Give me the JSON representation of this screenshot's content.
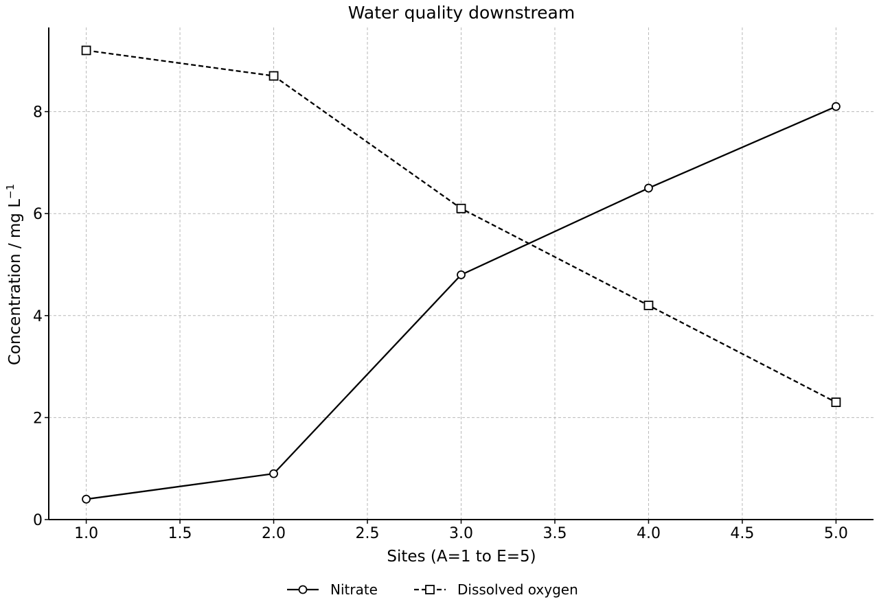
{
  "chart_data": {
    "type": "line",
    "title": "Water quality downstream",
    "xlabel": "Sites (A=1 to E=5)",
    "ylabel_main": "Concentration / mg L",
    "ylabel_sup": "−1",
    "xlim": [
      0.8,
      5.2
    ],
    "ylim": [
      0,
      9.65
    ],
    "xticks": [
      1.0,
      1.5,
      2.0,
      2.5,
      3.0,
      3.5,
      4.0,
      4.5,
      5.0
    ],
    "xtick_labels": [
      "1.0",
      "1.5",
      "2.0",
      "2.5",
      "3.0",
      "3.5",
      "4.0",
      "4.5",
      "5.0"
    ],
    "yticks": [
      0,
      2,
      4,
      6,
      8
    ],
    "ytick_labels": [
      "0",
      "2",
      "4",
      "6",
      "8"
    ],
    "grid": true,
    "legend_position": "bottom-center",
    "x": [
      1,
      2,
      3,
      4,
      5
    ],
    "series": [
      {
        "name": "Nitrate",
        "values": [
          0.4,
          0.9,
          4.8,
          6.5,
          8.1
        ],
        "marker": "circle",
        "line_style": "solid",
        "color": "#000000"
      },
      {
        "name": "Dissolved oxygen",
        "values": [
          9.2,
          8.7,
          6.1,
          4.2,
          2.3
        ],
        "marker": "square",
        "line_style": "dashed",
        "color": "#000000"
      }
    ]
  }
}
